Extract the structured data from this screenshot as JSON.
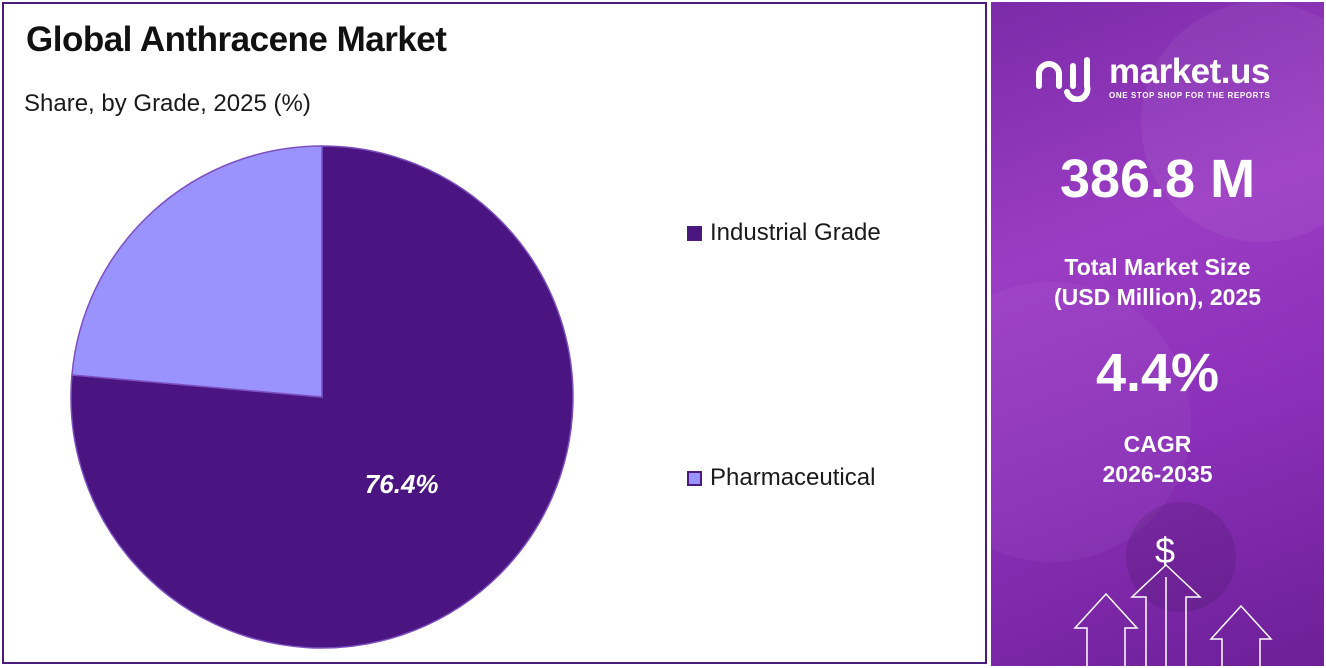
{
  "header": {
    "title": "Global Anthracene Market",
    "subtitle": "Share, by Grade, 2025 (%)"
  },
  "chart_data": {
    "type": "pie",
    "title": "Global Anthracene Market",
    "subtitle": "Share, by Grade, 2025 (%)",
    "slices": [
      {
        "name": "Industrial Grade",
        "value": 76.4,
        "label": "76.4%",
        "color": "#4b1581"
      },
      {
        "name": "Pharmaceutical",
        "value": 23.6,
        "label": "",
        "color": "#9b93fd"
      }
    ],
    "legend_position": "right"
  },
  "brand": {
    "name": "market.us",
    "tagline": "ONE STOP SHOP FOR THE REPORTS",
    "icon": "market-us-logo-icon"
  },
  "stats": {
    "market_size_value": "386.8 M",
    "market_size_label_1": "Total Market Size",
    "market_size_label_2": "(USD Million), 2025",
    "cagr_value": "4.4%",
    "cagr_label_1": "CAGR",
    "cagr_label_2": "2026-2035"
  },
  "decor": {
    "dollar_symbol": "$"
  },
  "colors": {
    "frame": "#4b1a7d",
    "industrial": "#4b1581",
    "pharmaceutical": "#9b93fd",
    "panel": "#8a2fb8"
  }
}
